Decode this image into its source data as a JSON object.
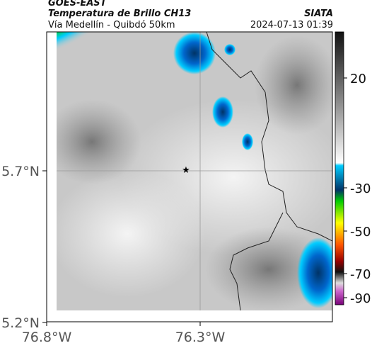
{
  "header": {
    "title": "GOES-EAST",
    "subtitle": "Temperatura de Brillo CH13",
    "route": "Vía Medellín - Quibdó 50km",
    "source": "SIATA",
    "timestamp": "2024-07-13 01:39"
  },
  "map": {
    "lat_labels": [
      "5.7°N",
      "5.2°N"
    ],
    "lon_labels": [
      "76.8°W",
      "76.3°W"
    ]
  },
  "colorbar": {
    "ticks": [
      "20",
      "-30",
      "-50",
      "-70",
      "-90"
    ]
  }
}
